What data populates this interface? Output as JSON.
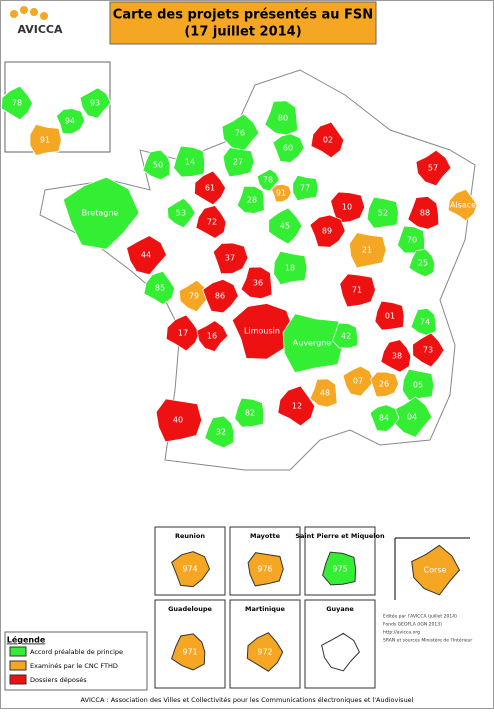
{
  "header": {
    "logo": "AVICCA",
    "title": "Carte des projets présentés au FSN",
    "subtitle": "(17 juillet 2014)"
  },
  "inset": [
    {
      "label": "78",
      "color": "#33ee33"
    },
    {
      "label": "93",
      "color": "#33ee33"
    },
    {
      "label": "94",
      "color": "#33ee33"
    },
    {
      "label": "91",
      "color": "#f5a623"
    }
  ],
  "regions": [
    {
      "label": "80",
      "color": "#33ee33"
    },
    {
      "label": "02",
      "color": "#ee1111"
    },
    {
      "label": "76",
      "color": "#33ee33"
    },
    {
      "label": "60",
      "color": "#33ee33"
    },
    {
      "label": "27",
      "color": "#33ee33"
    },
    {
      "label": "14",
      "color": "#33ee33"
    },
    {
      "label": "50",
      "color": "#33ee33"
    },
    {
      "label": "61",
      "color": "#ee1111"
    },
    {
      "label": "78",
      "color": "#33ee33"
    },
    {
      "label": "91",
      "color": "#f5a623"
    },
    {
      "label": "77",
      "color": "#33ee33"
    },
    {
      "label": "28",
      "color": "#33ee33"
    },
    {
      "label": "72",
      "color": "#ee1111"
    },
    {
      "label": "53",
      "color": "#33ee33"
    },
    {
      "label": "Bretagne",
      "color": "#33ee33"
    },
    {
      "label": "10",
      "color": "#ee1111"
    },
    {
      "label": "52",
      "color": "#33ee33"
    },
    {
      "label": "88",
      "color": "#ee1111"
    },
    {
      "label": "Alsace",
      "color": "#f5a623"
    },
    {
      "label": "57",
      "color": "#ee1111"
    },
    {
      "label": "89",
      "color": "#ee1111"
    },
    {
      "label": "21",
      "color": "#f5a623"
    },
    {
      "label": "70",
      "color": "#33ee33"
    },
    {
      "label": "25",
      "color": "#33ee33"
    },
    {
      "label": "45",
      "color": "#33ee33"
    },
    {
      "label": "44",
      "color": "#ee1111"
    },
    {
      "label": "37",
      "color": "#ee1111"
    },
    {
      "label": "18",
      "color": "#33ee33"
    },
    {
      "label": "36",
      "color": "#ee1111"
    },
    {
      "label": "85",
      "color": "#33ee33"
    },
    {
      "label": "79",
      "color": "#f5a623"
    },
    {
      "label": "86",
      "color": "#ee1111"
    },
    {
      "label": "71",
      "color": "#ee1111"
    },
    {
      "label": "01",
      "color": "#ee1111"
    },
    {
      "label": "74",
      "color": "#33ee33"
    },
    {
      "label": "17",
      "color": "#ee1111"
    },
    {
      "label": "16",
      "color": "#ee1111"
    },
    {
      "label": "Limousin",
      "color": "#ee1111"
    },
    {
      "label": "Auvergne",
      "color": "#33ee33"
    },
    {
      "label": "42",
      "color": "#33ee33"
    },
    {
      "label": "38",
      "color": "#ee1111"
    },
    {
      "label": "73",
      "color": "#ee1111"
    },
    {
      "label": "07",
      "color": "#f5a623"
    },
    {
      "label": "26",
      "color": "#f5a623"
    },
    {
      "label": "05",
      "color": "#33ee33"
    },
    {
      "label": "48",
      "color": "#f5a623"
    },
    {
      "label": "12",
      "color": "#ee1111"
    },
    {
      "label": "04",
      "color": "#33ee33"
    },
    {
      "label": "84",
      "color": "#33ee33"
    },
    {
      "label": "40",
      "color": "#ee1111"
    },
    {
      "label": "82",
      "color": "#33ee33"
    },
    {
      "label": "32",
      "color": "#33ee33"
    }
  ],
  "overseas": [
    {
      "title": "Reunion",
      "label": "974",
      "color": "#f5a623"
    },
    {
      "title": "Mayotte",
      "label": "976",
      "color": "#f5a623"
    },
    {
      "title": "Saint Pierre et Miquelon",
      "label": "975",
      "color": "#33ee33"
    },
    {
      "title": "Guadeloupe",
      "label": "971",
      "color": "#f5a623"
    },
    {
      "title": "Martinique",
      "label": "972",
      "color": "#f5a623"
    },
    {
      "title": "Guyane",
      "label": "",
      "color": "#ffffff"
    }
  ],
  "corse": {
    "label": "Corse",
    "color": "#f5a623"
  },
  "legend": {
    "title": "Légende",
    "items": [
      {
        "label": "Accord préalable de principe",
        "color": "#33ee33"
      },
      {
        "label": "Examinés par le CNC FTHD",
        "color": "#f5a623"
      },
      {
        "label": "Dossiers déposés",
        "color": "#ee1111"
      }
    ]
  },
  "credits": [
    "Editée par l'AVICCA (juillet 2014)",
    "Fonds GEOFLA (IGN 2013)",
    "http://avicca.org",
    "SRAN et sources Ministère de l'Intérieur"
  ],
  "footer": "AVICCA : Association des Villes et Collectivités pour les Communications électroniques et l'Audiovisuel"
}
